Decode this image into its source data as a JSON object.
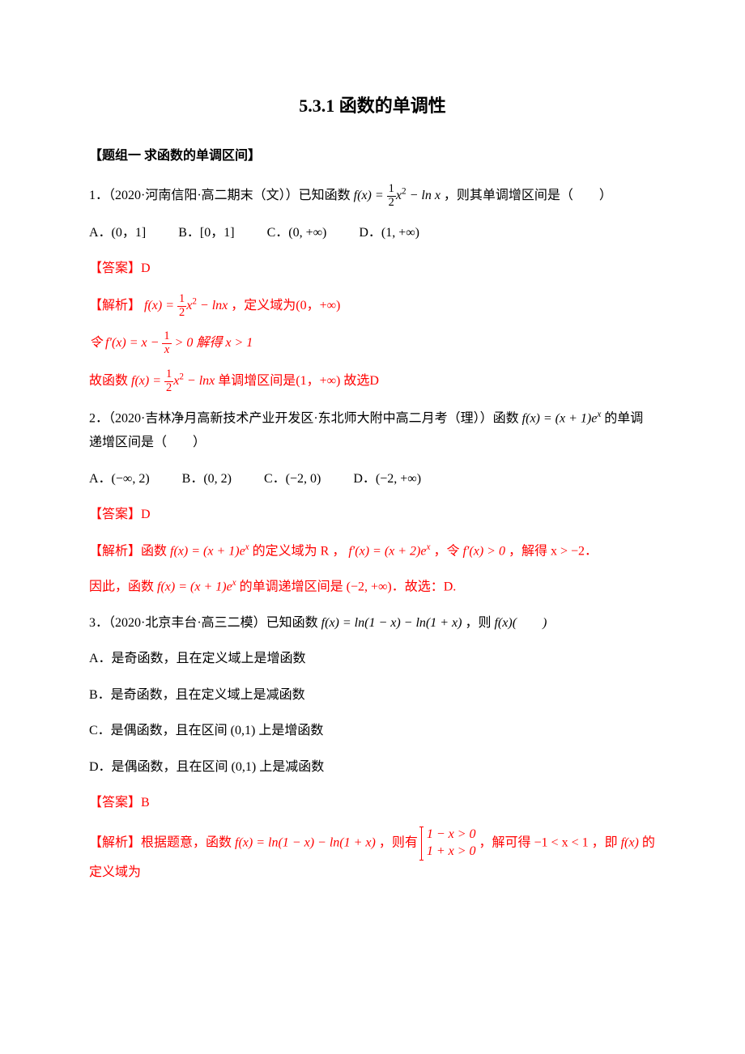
{
  "colors": {
    "text": "#000000",
    "accent": "#ff0000",
    "background": "#ffffff"
  },
  "title": "5.3.1 函数的单调性",
  "section_heading": "【题组一  求函数的单调区间】",
  "q1": {
    "stem_prefix": "1．（2020·河南信阳·高二期末（文））已知函数",
    "stem_suffix": "，则其单调增区间是（　　）",
    "f_label": "f(x) = ",
    "f_frac_num": "1",
    "f_frac_den": "2",
    "f_after": "x",
    "f_exp": "2",
    "f_trail": " − ln x",
    "opts": {
      "A": "A．(0，1]",
      "B": "B．[0，1]",
      "C": "C．(0, +∞)",
      "D": "D．(1, +∞)"
    },
    "ans_label": "【答案】D",
    "sol1a": "【解析】",
    "sol1b": "，定义域为(0，+∞)",
    "sol2a": "令 f′(x) = x − ",
    "sol2_frac_num": "1",
    "sol2_frac_den": "x",
    "sol2b": " > 0 解得 x > 1",
    "sol3a": "故函数",
    "sol3b": "单调增区间是(1，+∞) 故选D"
  },
  "q2": {
    "stem_a": "2．（2020·吉林净月高新技术产业开发区·东北师大附中高二月考（理））函数 ",
    "stem_fx": "f(x) = (x + 1)e",
    "stem_exp": "x",
    "stem_b": " 的单调递增区间是（　　）",
    "opts": {
      "A": "A．(−∞, 2)",
      "B": "B．(0, 2)",
      "C": "C．(−2, 0)",
      "D": "D．(−2, +∞)"
    },
    "ans_label": "【答案】D",
    "sol1a": "【解析】函数 ",
    "sol1b": " 的定义域为 R ， ",
    "sol1_fpr": "f′(x) = (x + 2)e",
    "sol1c": "，令 ",
    "sol1_cond": "f′(x) > 0",
    "sol1d": "，解得 x > −2．",
    "sol2a": "因此，函数 ",
    "sol2b": " 的单调递增区间是 (−2, +∞)．故选：D."
  },
  "q3": {
    "stem_a": "3．（2020·北京丰台·高三二模）已知函数 ",
    "stem_fx": "f(x) = ln(1 − x) − ln(1 + x)",
    "stem_b": "，则 ",
    "stem_c": "f(x)(　　)",
    "opts": {
      "A": "A．是奇函数，且在定义域上是增函数",
      "B": "B．是奇函数，且在定义域上是减函数",
      "C": "C．是偶函数，且在区间 (0,1) 上是增函数",
      "D": "D．是偶函数，且在区间 (0,1) 上是减函数"
    },
    "ans_label": "【答案】B",
    "sol_a": "【解析】根据题意，函数 ",
    "sol_fx": "f(x) = ln(1 − x) − ln(1 + x)",
    "sol_b": "，则有 ",
    "sol_case1": "1 − x > 0",
    "sol_case2": "1 + x > 0",
    "sol_c": "，解可得 −1 < x < 1 ，即 ",
    "sol_d": "f(x)",
    "sol_e": " 的定义域为"
  }
}
